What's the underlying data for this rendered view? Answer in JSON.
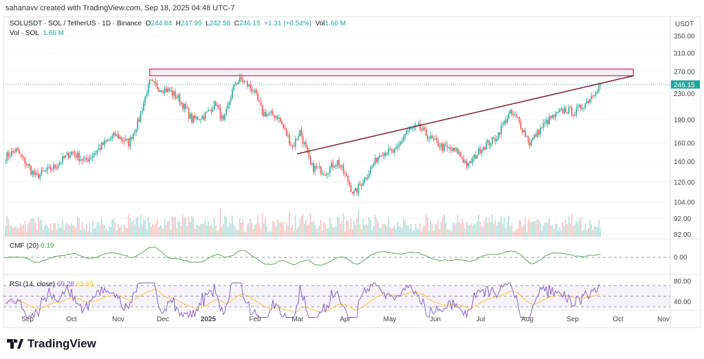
{
  "credit": "sahanavv created with TradingView.com, Sep 18, 2025 04:48 UTC-7",
  "legend": {
    "symbol": "SOLUSDT · SOL / TetherUS · 1D · Binance",
    "o_label": "O",
    "o": "244.84",
    "h_label": "H",
    "h": "247.99",
    "l_label": "L",
    "l": "242.58",
    "c_label": "C",
    "c": "246.15",
    "change": "+1.31 (+0.54%)",
    "vol_label": "Vol",
    "vol": "1.66 M"
  },
  "vol_legend": {
    "label": "Vol · SOL",
    "value": "1.66 M"
  },
  "cmf": {
    "label": "CMF (20)",
    "value": "0.19",
    "axis": [
      "0.00"
    ]
  },
  "rsi": {
    "label": "RSI (14, close)",
    "value": "69.28",
    "ma": "63.69",
    "axis": [
      "80.00",
      "40.00"
    ]
  },
  "price_axis": {
    "currency": "USDT",
    "ticks": [
      "350.00",
      "310.00",
      "270.00",
      "230.00",
      "190.00",
      "160.00",
      "140.00",
      "120.00",
      "104.00",
      "92.00",
      "82.00"
    ],
    "last_price": "246.15"
  },
  "time_axis": [
    "Sep",
    "Oct",
    "Nov",
    "Dec",
    "2025",
    "Feb",
    "Mar",
    "Apr",
    "May",
    "Jun",
    "Jul",
    "Aug",
    "Sep",
    "Oct",
    "Nov"
  ],
  "brand": "TradingView",
  "colors": {
    "up": "#26a69a",
    "down": "#ef5350",
    "trendline": "#7b1f2a",
    "zone": "#d81b60",
    "cmf": "#43a047",
    "rsi": "#7e57c2",
    "rsi_ma": "#fbc02d"
  },
  "chart_data": {
    "type": "candlestick",
    "start": "2024-08-18",
    "end": "2025-09-18",
    "anchor_closes": [
      [
        0,
        145
      ],
      [
        7,
        152
      ],
      [
        20,
        125
      ],
      [
        33,
        135
      ],
      [
        44,
        150
      ],
      [
        53,
        140
      ],
      [
        63,
        155
      ],
      [
        73,
        170
      ],
      [
        82,
        160
      ],
      [
        89,
        190
      ],
      [
        96,
        250
      ],
      [
        102,
        240
      ],
      [
        109,
        235
      ],
      [
        116,
        220
      ],
      [
        124,
        190
      ],
      [
        132,
        195
      ],
      [
        140,
        215
      ],
      [
        145,
        185
      ],
      [
        153,
        250
      ],
      [
        157,
        255
      ],
      [
        165,
        235
      ],
      [
        171,
        200
      ],
      [
        181,
        195
      ],
      [
        191,
        155
      ],
      [
        196,
        175
      ],
      [
        203,
        135
      ],
      [
        213,
        130
      ],
      [
        221,
        140
      ],
      [
        232,
        110
      ],
      [
        240,
        125
      ],
      [
        250,
        150
      ],
      [
        260,
        150
      ],
      [
        267,
        175
      ],
      [
        275,
        180
      ],
      [
        283,
        165
      ],
      [
        291,
        155
      ],
      [
        301,
        150
      ],
      [
        308,
        135
      ],
      [
        317,
        155
      ],
      [
        326,
        165
      ],
      [
        336,
        200
      ],
      [
        341,
        190
      ],
      [
        349,
        160
      ],
      [
        357,
        180
      ],
      [
        362,
        190
      ],
      [
        372,
        205
      ],
      [
        379,
        200
      ],
      [
        388,
        220
      ],
      [
        396,
        246
      ]
    ],
    "trendline": {
      "from": [
        "2025-02-28",
        148
      ],
      "to": [
        "2025-10-10",
        262
      ]
    },
    "resistance_zone": {
      "from": "2024-11-22",
      "to": "2025-10-10",
      "low": 262,
      "high": 275
    }
  }
}
